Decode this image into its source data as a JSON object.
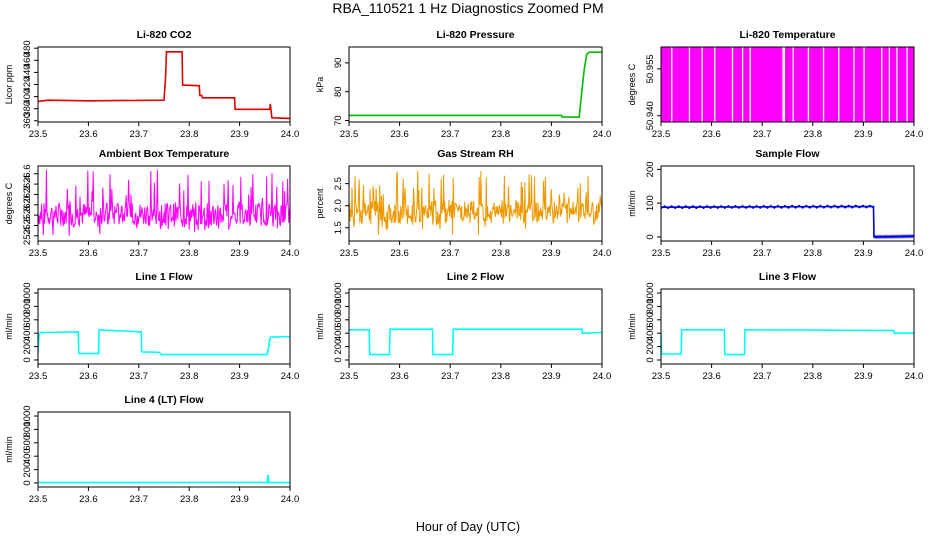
{
  "figure": {
    "title": "RBA_110521  1 Hz Diagnostics Zoomed PM",
    "xlabel": "Hour of Day (UTC)"
  },
  "chart_data": [
    {
      "type": "line",
      "title": "Li-820 CO2",
      "ylabel": "Licor ppm",
      "color": "#dd0000",
      "xlim": [
        23.5,
        24.0
      ],
      "xticks": [
        23.5,
        23.6,
        23.7,
        23.8,
        23.9,
        24.0
      ],
      "xtick_labels": [
        "23.5",
        "23.6",
        "23.7",
        "23.8",
        "23.9",
        "24.0"
      ],
      "ylim": [
        358,
        482
      ],
      "yticks": [
        360,
        380,
        400,
        420,
        440,
        460,
        480
      ],
      "ytick_labels": [
        "360",
        "380",
        "400",
        "420",
        "440",
        "460",
        "480"
      ],
      "series": [
        {
          "name": "CO2",
          "x": [
            23.5,
            23.52,
            23.6,
            23.75,
            23.753,
            23.755,
            23.786,
            23.787,
            23.82,
            23.821,
            23.825,
            23.826,
            23.89,
            23.891,
            23.96,
            23.961,
            23.963,
            23.964,
            24.0
          ],
          "y": [
            392,
            394,
            393,
            394,
            430,
            474,
            474,
            419,
            418,
            402,
            402,
            398,
            398,
            379,
            379,
            388,
            372,
            365,
            364
          ]
        }
      ]
    },
    {
      "type": "line",
      "title": "Li-820 Pressure",
      "ylabel": "kPa",
      "color": "#00bb00",
      "xlim": [
        23.5,
        24.0
      ],
      "xticks": [
        23.5,
        23.6,
        23.7,
        23.8,
        23.9,
        24.0
      ],
      "xtick_labels": [
        "23.5",
        "23.6",
        "23.7",
        "23.8",
        "23.9",
        "24.0"
      ],
      "ylim": [
        69.5,
        95.5
      ],
      "yticks": [
        70,
        80,
        90
      ],
      "ytick_labels": [
        "70",
        "80",
        "90"
      ],
      "series": [
        {
          "name": "Pressure",
          "x": [
            23.5,
            23.92,
            23.921,
            23.955,
            23.96,
            23.965,
            23.97,
            23.975,
            24.0
          ],
          "y": [
            71.8,
            71.8,
            71.2,
            71.2,
            80,
            88,
            93,
            93.7,
            93.7
          ]
        }
      ]
    },
    {
      "type": "line",
      "title": "Li-820 Temperature",
      "ylabel": "degrees C",
      "color": "#ff00ff",
      "xlim": [
        23.5,
        24.0
      ],
      "xticks": [
        23.5,
        23.6,
        23.7,
        23.8,
        23.9,
        24.0
      ],
      "xtick_labels": [
        "23.5",
        "23.6",
        "23.7",
        "23.8",
        "23.9",
        "24.0"
      ],
      "ylim": [
        50.938,
        50.962
      ],
      "yticks": [
        50.94,
        50.955
      ],
      "ytick_labels": [
        "50.940",
        "50.955"
      ],
      "levels": [
        50.9375,
        50.9625
      ],
      "fill_ranges": [
        [
          23.5,
          23.74
        ],
        [
          23.745,
          24.0
        ]
      ],
      "gaps": [
        23.52,
        23.555,
        23.58,
        23.605,
        23.64,
        23.66,
        23.675,
        23.76,
        23.79,
        23.82,
        23.85,
        23.88,
        23.9,
        23.935,
        23.95,
        23.965,
        23.985
      ]
    },
    {
      "type": "line",
      "title": "Ambient Box Temperature",
      "ylabel": "degrees C",
      "color": "#ff00ff",
      "xlim": [
        23.5,
        24.0
      ],
      "xticks": [
        23.5,
        23.6,
        23.7,
        23.8,
        23.9,
        24.0
      ],
      "xtick_labels": [
        "23.5",
        "23.6",
        "23.7",
        "23.8",
        "23.9",
        "24.0"
      ],
      "ylim": [
        25.3,
        26.75
      ],
      "yticks": [
        25.4,
        25.6,
        25.8,
        26.0,
        26.2,
        26.4,
        26.6
      ],
      "ytick_labels": [
        "25.4",
        "25.6",
        "25.8",
        "26.0",
        "26.2",
        "26.4",
        "26.6"
      ],
      "noise": {
        "x_start": 23.5,
        "x_end": 24.0,
        "n": 420,
        "base": 25.82,
        "low": 25.35,
        "high": 26.7,
        "seed": 7
      }
    },
    {
      "type": "line",
      "title": "Gas Stream RH",
      "ylabel": "percent",
      "color": "#ee9900",
      "xlim": [
        23.5,
        24.0
      ],
      "xticks": [
        23.5,
        23.6,
        23.7,
        23.8,
        23.9,
        24.0
      ],
      "xtick_labels": [
        "23.5",
        "23.6",
        "23.7",
        "23.8",
        "23.9",
        "24.0"
      ],
      "ylim": [
        1.2,
        2.9
      ],
      "yticks": [
        1.5,
        2.0,
        2.5
      ],
      "ytick_labels": [
        "1.5",
        "2.0",
        "2.5"
      ],
      "noise": {
        "x_start": 23.5,
        "x_end": 24.0,
        "n": 420,
        "base": 1.85,
        "low": 1.3,
        "high": 2.8,
        "seed": 13
      }
    },
    {
      "type": "line",
      "title": "Sample Flow",
      "ylabel": "ml/min",
      "color": "#0000dd",
      "xlim": [
        23.5,
        24.0
      ],
      "xticks": [
        23.5,
        23.6,
        23.7,
        23.8,
        23.9,
        24.0
      ],
      "xtick_labels": [
        "23.5",
        "23.6",
        "23.7",
        "23.8",
        "23.9",
        "24.0"
      ],
      "ylim": [
        -12,
        210
      ],
      "yticks": [
        0,
        100,
        200
      ],
      "ytick_labels": [
        "0",
        "100",
        "200"
      ],
      "series": [
        {
          "name": "Flow",
          "x": [
            23.5,
            23.92,
            23.921,
            24.0
          ],
          "y": [
            88,
            90,
            0,
            2
          ]
        }
      ],
      "wiggle": [
        {
          "x_start": 23.5,
          "x_end": 23.92,
          "amp": 8,
          "n": 60
        },
        {
          "x_start": 23.921,
          "x_end": 24.0,
          "amp": 6,
          "n": 40
        }
      ]
    },
    {
      "type": "line",
      "title": "Line 1 Flow",
      "ylabel": "ml/min",
      "color": "#00ffff",
      "xlim": [
        23.5,
        24.0
      ],
      "xticks": [
        23.5,
        23.6,
        23.7,
        23.8,
        23.9,
        24.0
      ],
      "xtick_labels": [
        "23.5",
        "23.6",
        "23.7",
        "23.8",
        "23.9",
        "24.0"
      ],
      "ylim": [
        -60,
        1060
      ],
      "yticks": [
        0,
        200,
        400,
        600,
        800,
        1000
      ],
      "ytick_labels": [
        "0",
        "200",
        "400",
        "600",
        "800",
        "1000"
      ],
      "series": [
        {
          "name": "Line 1",
          "x": [
            23.5,
            23.502,
            23.505,
            23.58,
            23.581,
            23.62,
            23.621,
            23.705,
            23.706,
            23.74,
            23.745,
            23.955,
            23.956,
            23.96,
            23.961,
            24.0
          ],
          "y": [
            110,
            380,
            410,
            420,
            95,
            95,
            450,
            420,
            120,
            115,
            80,
            80,
            120,
            300,
            340,
            350
          ]
        }
      ]
    },
    {
      "type": "line",
      "title": "Line 2 Flow",
      "ylabel": "ml/min",
      "color": "#00ffff",
      "xlim": [
        23.5,
        24.0
      ],
      "xticks": [
        23.5,
        23.6,
        23.7,
        23.8,
        23.9,
        24.0
      ],
      "xtick_labels": [
        "23.5",
        "23.6",
        "23.7",
        "23.8",
        "23.9",
        "24.0"
      ],
      "ylim": [
        -60,
        1060
      ],
      "yticks": [
        0,
        200,
        400,
        600,
        800,
        1000
      ],
      "ytick_labels": [
        "0",
        "200",
        "400",
        "600",
        "800",
        "1000"
      ],
      "series": [
        {
          "name": "Line 2",
          "x": [
            23.5,
            23.54,
            23.541,
            23.58,
            23.581,
            23.665,
            23.666,
            23.705,
            23.706,
            23.96,
            23.961,
            24.0
          ],
          "y": [
            450,
            450,
            80,
            80,
            460,
            460,
            80,
            80,
            460,
            460,
            400,
            410
          ]
        }
      ]
    },
    {
      "type": "line",
      "title": "Line 3 Flow",
      "ylabel": "ml/min",
      "color": "#00ffff",
      "xlim": [
        23.5,
        24.0
      ],
      "xticks": [
        23.5,
        23.6,
        23.7,
        23.8,
        23.9,
        24.0
      ],
      "xtick_labels": [
        "23.5",
        "23.6",
        "23.7",
        "23.8",
        "23.9",
        "24.0"
      ],
      "ylim": [
        -60,
        1060
      ],
      "yticks": [
        0,
        200,
        400,
        600,
        800,
        1000
      ],
      "ytick_labels": [
        "0",
        "200",
        "400",
        "600",
        "800",
        "1000"
      ],
      "series": [
        {
          "name": "Line 3",
          "x": [
            23.5,
            23.501,
            23.54,
            23.541,
            23.625,
            23.626,
            23.665,
            23.666,
            23.96,
            23.961,
            24.0
          ],
          "y": [
            400,
            90,
            90,
            450,
            450,
            80,
            80,
            450,
            440,
            400,
            400
          ]
        }
      ]
    },
    {
      "type": "line",
      "title": "Line 4 (LT) Flow",
      "ylabel": "ml/min",
      "color": "#00ffff",
      "xlim": [
        23.5,
        24.0
      ],
      "xticks": [
        23.5,
        23.6,
        23.7,
        23.8,
        23.9,
        24.0
      ],
      "xtick_labels": [
        "23.5",
        "23.6",
        "23.7",
        "23.8",
        "23.9",
        "24.0"
      ],
      "ylim": [
        -60,
        1060
      ],
      "yticks": [
        0,
        200,
        400,
        600,
        800,
        1000
      ],
      "ytick_labels": [
        "0",
        "200",
        "400",
        "600",
        "800",
        "1000"
      ],
      "series": [
        {
          "name": "Line 4",
          "x": [
            23.5,
            23.955,
            23.956,
            23.958,
            23.96,
            24.0
          ],
          "y": [
            5,
            8,
            120,
            10,
            6,
            5
          ]
        }
      ]
    }
  ]
}
